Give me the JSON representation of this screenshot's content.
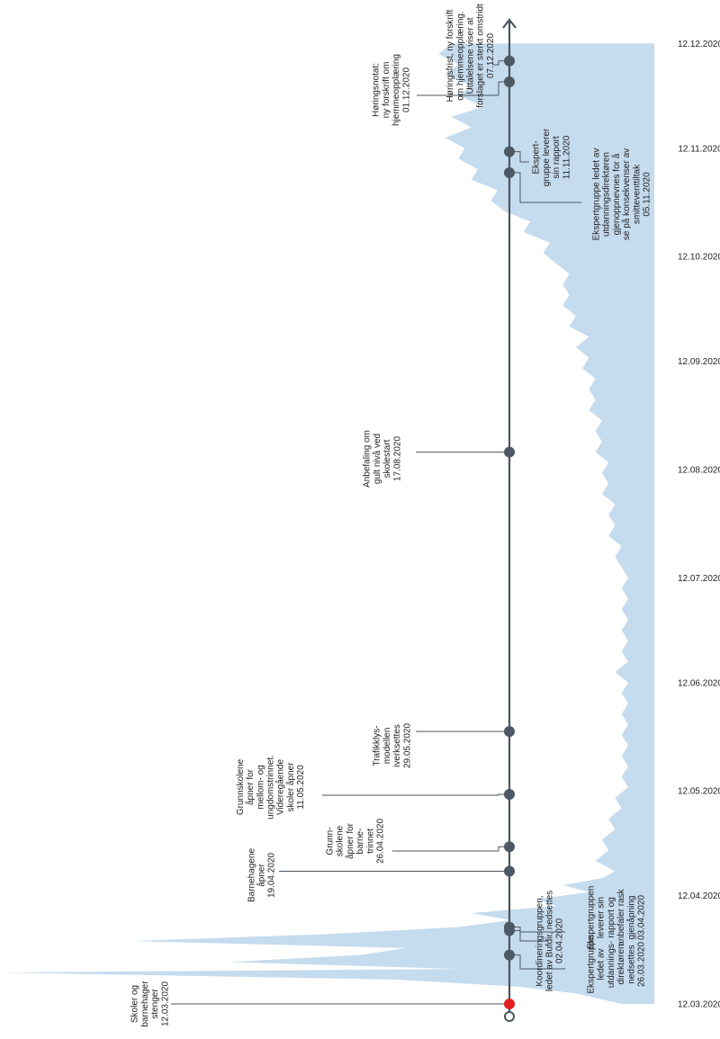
{
  "colors": {
    "area": "#c5dbee",
    "axis": "#4a5560",
    "marker": "#4c5864",
    "start_marker": "#e02020",
    "text": "#1f1f1f"
  },
  "date_axis": {
    "labels": [
      "12.03.2020",
      "12.04.2020",
      "12.05.2020",
      "12.06.2020",
      "12.07.2020",
      "12.08.2020",
      "12.09.2020",
      "12.10.2020",
      "12.11.2020",
      "12.12.2020"
    ]
  },
  "events": [
    {
      "id": "e1",
      "date": "12.03.2020",
      "side": "left",
      "special": "start",
      "lines": [
        "Skoler og",
        "barnehager",
        "stenger",
        "12.03.2020"
      ]
    },
    {
      "id": "e2",
      "date": "26.03.2020",
      "side": "right",
      "lines": [
        "Ekspertgruppe",
        "ledet av",
        "utdannings-",
        "direktøren",
        "nedsettes",
        "26.03.2020"
      ]
    },
    {
      "id": "e3",
      "date": "02.04.2020",
      "side": "right",
      "lines": [
        "Koordineringsgruppen,",
        "ledet av Bufdir, nedsettes",
        "02.04.2020"
      ]
    },
    {
      "id": "e4",
      "date": "03.04.2020",
      "side": "right",
      "lines": [
        "Ekspertgruppen",
        "leverer sin",
        "rapport og",
        "anbefaler rask",
        "gjenåpning",
        "03.04.2020"
      ]
    },
    {
      "id": "e5",
      "date": "19.04.2020",
      "side": "left",
      "lines": [
        "Barnehagene",
        "åpner",
        "19.04.2020"
      ]
    },
    {
      "id": "e6",
      "date": "26.04.2020",
      "side": "left",
      "lines": [
        "Grunn-",
        "skolene",
        "åpner for",
        "barne-",
        "trinnet",
        "26.04.2020"
      ]
    },
    {
      "id": "e7",
      "date": "11.05.2020",
      "side": "left",
      "lines": [
        "Grunnskolene",
        "åpner for",
        "mellom- og",
        "ungdomstrinnet.",
        "Videregående",
        "skoler åpner",
        "11.05.2020"
      ]
    },
    {
      "id": "e8",
      "date": "29.05.2020",
      "side": "left",
      "lines": [
        "Trafikklys-",
        "modellen",
        "iverksettes",
        "29.05.2020"
      ]
    },
    {
      "id": "e9",
      "date": "17.08.2020",
      "side": "left",
      "lines": [
        "Anbefaling om",
        "gult nivå ved",
        "skolestart",
        "17.08.2020"
      ]
    },
    {
      "id": "e10",
      "date": "05.11.2020",
      "side": "right",
      "lines": [
        "Ekspertgruppe ledet av",
        "utdanningsdirektøren",
        "gjenoppnevnes for å",
        "se på konsekvenser av",
        "smitteventtiltak",
        "05.11.2020"
      ]
    },
    {
      "id": "e11",
      "date": "11.11.2020",
      "side": "right",
      "lines": [
        "Ekspert-",
        "gruppe leverer",
        "sin rapport",
        "11.11.2020"
      ]
    },
    {
      "id": "e12",
      "date": "01.12.2020",
      "side": "left",
      "lines": [
        "Høringsnotat:",
        "ny forskrift om",
        "hjemmeopplæring",
        "01.12.2020"
      ]
    },
    {
      "id": "e13",
      "date": "07.12.2020",
      "side": "left",
      "lines": [
        "Høringsfrist, ny forskrift",
        "om hjemmeopplæring.",
        "Uttalelsene viser at",
        "forslaget er sterkt omstridt",
        "07.12.2020"
      ]
    }
  ],
  "chart_data": {
    "type": "area",
    "title": "",
    "xlabel": "",
    "ylabel": "",
    "x_range": [
      "12.03.2020",
      "12.12.2020"
    ],
    "note": "Light blue mirrored area along the timeline",
    "series": [
      {
        "points": [
          [
            "12.03.2020",
            5
          ],
          [
            "15.03.2020",
            12
          ],
          [
            "17.03.2020",
            21
          ],
          [
            "19.03.2020",
            40
          ],
          [
            "21.03.2020",
            100
          ],
          [
            "22.03.2020",
            30
          ],
          [
            "24.03.2020",
            65
          ],
          [
            "26.03.2020",
            45
          ],
          [
            "28.03.2020",
            38
          ],
          [
            "30.03.2020",
            80
          ],
          [
            "01.04.2020",
            50
          ],
          [
            "03.04.2020",
            30
          ],
          [
            "05.04.2020",
            22
          ],
          [
            "07.04.2020",
            28
          ],
          [
            "09.04.2020",
            15
          ],
          [
            "11.04.2020",
            18
          ],
          [
            "13.04.2020",
            10
          ],
          [
            "15.04.2020",
            14
          ],
          [
            "17.04.2020",
            8
          ],
          [
            "19.04.2020",
            6
          ],
          [
            "22.04.2020",
            9
          ],
          [
            "25.04.2020",
            7
          ],
          [
            "28.04.2020",
            8
          ],
          [
            "01.05.2020",
            6
          ],
          [
            "04.05.2020",
            7
          ],
          [
            "07.05.2020",
            5
          ],
          [
            "10.05.2020",
            6
          ],
          [
            "13.05.2020",
            4
          ],
          [
            "16.05.2020",
            5
          ],
          [
            "19.05.2020",
            4
          ],
          [
            "22.05.2020",
            5
          ],
          [
            "25.05.2020",
            4
          ],
          [
            "28.05.2020",
            5
          ],
          [
            "31.05.2020",
            4
          ],
          [
            "03.06.2020",
            5
          ],
          [
            "06.06.2020",
            4
          ],
          [
            "09.06.2020",
            5
          ],
          [
            "12.06.2020",
            4
          ],
          [
            "15.06.2020",
            6
          ],
          [
            "18.06.2020",
            4
          ],
          [
            "21.06.2020",
            5
          ],
          [
            "24.06.2020",
            4
          ],
          [
            "27.06.2020",
            5
          ],
          [
            "30.06.2020",
            4
          ],
          [
            "03.07.2020",
            5
          ],
          [
            "06.07.2020",
            4
          ],
          [
            "09.07.2020",
            5
          ],
          [
            "12.07.2020",
            4
          ],
          [
            "15.07.2020",
            5
          ],
          [
            "18.07.2020",
            6
          ],
          [
            "21.07.2020",
            5
          ],
          [
            "24.07.2020",
            7
          ],
          [
            "27.07.2020",
            6
          ],
          [
            "30.07.2020",
            7
          ],
          [
            "02.08.2020",
            6
          ],
          [
            "05.08.2020",
            8
          ],
          [
            "08.08.2020",
            7
          ],
          [
            "11.08.2020",
            8
          ],
          [
            "14.08.2020",
            7
          ],
          [
            "17.08.2020",
            9
          ],
          [
            "20.08.2020",
            8
          ],
          [
            "23.08.2020",
            9
          ],
          [
            "26.08.2020",
            8
          ],
          [
            "29.08.2020",
            10
          ],
          [
            "01.09.2020",
            9
          ],
          [
            "04.09.2020",
            10
          ],
          [
            "07.09.2020",
            9
          ],
          [
            "10.09.2020",
            11
          ],
          [
            "13.09.2020",
            10
          ],
          [
            "16.09.2020",
            12
          ],
          [
            "19.09.2020",
            10
          ],
          [
            "22.09.2020",
            13
          ],
          [
            "25.09.2020",
            12
          ],
          [
            "28.09.2020",
            14
          ],
          [
            "01.10.2020",
            13
          ],
          [
            "04.10.2020",
            14
          ],
          [
            "07.10.2020",
            13
          ],
          [
            "10.10.2020",
            15
          ],
          [
            "13.10.2020",
            17
          ],
          [
            "16.10.2020",
            16
          ],
          [
            "19.10.2020",
            20
          ],
          [
            "22.10.2020",
            19
          ],
          [
            "25.10.2020",
            23
          ],
          [
            "28.10.2020",
            25
          ],
          [
            "31.10.2020",
            24
          ],
          [
            "03.11.2020",
            28
          ],
          [
            "06.11.2020",
            27
          ],
          [
            "09.11.2020",
            30
          ],
          [
            "12.11.2020",
            29
          ],
          [
            "15.11.2020",
            32
          ],
          [
            "18.11.2020",
            28
          ],
          [
            "21.11.2020",
            31
          ],
          [
            "24.11.2020",
            26
          ],
          [
            "27.11.2020",
            30
          ],
          [
            "30.11.2020",
            28
          ],
          [
            "03.12.2020",
            32
          ],
          [
            "06.12.2020",
            30
          ],
          [
            "09.12.2020",
            33
          ],
          [
            "12.12.2020",
            31
          ]
        ]
      }
    ]
  }
}
